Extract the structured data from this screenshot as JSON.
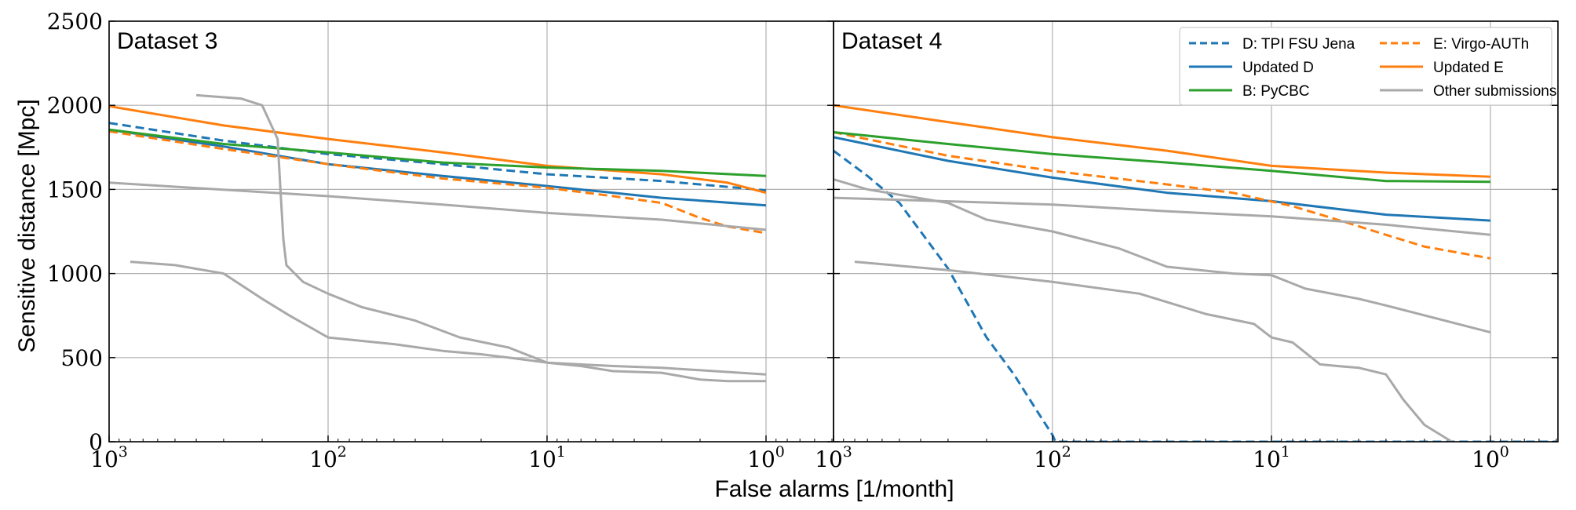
{
  "figure": {
    "ylabel": "Sensitive distance [Mpc]",
    "xlabel": "False alarms [1/month]"
  },
  "chart_data": [
    {
      "type": "line",
      "title": "Dataset 3",
      "x_axis": {
        "scale": "log",
        "reversed": true,
        "range": [
          1000,
          0.5
        ],
        "ticks": [
          {
            "value": 1000,
            "base": "10",
            "exp": "3"
          },
          {
            "value": 100,
            "base": "10",
            "exp": "2"
          },
          {
            "value": 10,
            "base": "10",
            "exp": "1"
          },
          {
            "value": 1,
            "base": "10",
            "exp": "0"
          }
        ]
      },
      "y_axis": {
        "range": [
          0,
          2500
        ],
        "ticks": [
          "0",
          "500",
          "1000",
          "1500",
          "2000",
          "2500"
        ]
      },
      "grid": true,
      "series": [
        {
          "name": "D: TPI FSU Jena",
          "color": "#1f77b4",
          "dashed": true,
          "x": [
            1000,
            300,
            100,
            30,
            10,
            3,
            1
          ],
          "y": [
            1895,
            1790,
            1710,
            1650,
            1590,
            1550,
            1495
          ]
        },
        {
          "name": "Updated D",
          "color": "#1f77b4",
          "dashed": false,
          "x": [
            1000,
            300,
            100,
            30,
            10,
            3,
            1
          ],
          "y": [
            1855,
            1755,
            1650,
            1580,
            1520,
            1450,
            1405
          ]
        },
        {
          "name": "E: Virgo-AUTh",
          "color": "#ff7f0e",
          "dashed": true,
          "x": [
            1000,
            300,
            100,
            30,
            10,
            5,
            3,
            2,
            1.5,
            1
          ],
          "y": [
            1845,
            1740,
            1650,
            1565,
            1510,
            1460,
            1420,
            1330,
            1280,
            1240
          ]
        },
        {
          "name": "Updated E",
          "color": "#ff7f0e",
          "dashed": false,
          "x": [
            1000,
            300,
            100,
            30,
            10,
            3,
            1.5,
            1
          ],
          "y": [
            1995,
            1880,
            1800,
            1720,
            1640,
            1590,
            1540,
            1480
          ]
        },
        {
          "name": "B: PyCBC",
          "color": "#2ca02c",
          "dashed": false,
          "x": [
            1000,
            300,
            100,
            30,
            10,
            3,
            1
          ],
          "y": [
            1855,
            1770,
            1720,
            1660,
            1630,
            1610,
            1580
          ]
        },
        {
          "name": "Other submissions",
          "color": "#a9a9a9",
          "dashed": false,
          "x": [
            1000,
            100,
            30,
            10,
            3,
            1
          ],
          "y": [
            1540,
            1460,
            1410,
            1360,
            1320,
            1260
          ]
        },
        {
          "name": "Other submissions",
          "color": "#a9a9a9",
          "dashed": false,
          "x": [
            400,
            250,
            200,
            170,
            165,
            160,
            155,
            130,
            100,
            70,
            40,
            25,
            15,
            10,
            7,
            5,
            3,
            2,
            1.5,
            1
          ],
          "y": [
            2060,
            2040,
            2000,
            1800,
            1500,
            1200,
            1050,
            950,
            880,
            800,
            720,
            620,
            560,
            470,
            450,
            420,
            410,
            370,
            360,
            360
          ]
        },
        {
          "name": "Other submissions",
          "color": "#a9a9a9",
          "dashed": false,
          "x": [
            800,
            500,
            300,
            200,
            150,
            100,
            50,
            30,
            20,
            15,
            10,
            5,
            3,
            1
          ],
          "y": [
            1070,
            1050,
            1000,
            850,
            750,
            620,
            580,
            540,
            520,
            500,
            470,
            450,
            440,
            400
          ]
        }
      ]
    },
    {
      "type": "line",
      "title": "Dataset 4",
      "x_axis": {
        "scale": "log",
        "reversed": true,
        "range": [
          1000,
          0.5
        ],
        "ticks": [
          {
            "value": 1000,
            "base": "10",
            "exp": "3"
          },
          {
            "value": 100,
            "base": "10",
            "exp": "2"
          },
          {
            "value": 10,
            "base": "10",
            "exp": "1"
          },
          {
            "value": 1,
            "base": "10",
            "exp": "0"
          }
        ]
      },
      "y_axis": {
        "range": [
          0,
          2500
        ]
      },
      "grid": true,
      "series": [
        {
          "name": "D: TPI FSU Jena",
          "color": "#1f77b4",
          "dashed": true,
          "x": [
            1000,
            700,
            500,
            300,
            200,
            150,
            120,
            100,
            97,
            95,
            0.5
          ],
          "y": [
            1730,
            1580,
            1420,
            1030,
            620,
            400,
            200,
            40,
            0,
            0,
            0
          ]
        },
        {
          "name": "Updated D",
          "color": "#1f77b4",
          "dashed": false,
          "x": [
            1000,
            300,
            100,
            30,
            10,
            3,
            1
          ],
          "y": [
            1810,
            1670,
            1570,
            1480,
            1430,
            1350,
            1315
          ]
        },
        {
          "name": "E: Virgo-AUTh",
          "color": "#ff7f0e",
          "dashed": true,
          "x": [
            1000,
            300,
            100,
            30,
            15,
            8,
            5,
            3,
            2,
            1
          ],
          "y": [
            1840,
            1700,
            1610,
            1530,
            1480,
            1400,
            1320,
            1230,
            1160,
            1090
          ]
        },
        {
          "name": "Updated E",
          "color": "#ff7f0e",
          "dashed": false,
          "x": [
            1000,
            300,
            100,
            30,
            10,
            3,
            1
          ],
          "y": [
            2000,
            1900,
            1810,
            1730,
            1640,
            1600,
            1575
          ]
        },
        {
          "name": "B: PyCBC",
          "color": "#2ca02c",
          "dashed": false,
          "x": [
            1000,
            300,
            100,
            30,
            10,
            3,
            1
          ],
          "y": [
            1840,
            1770,
            1710,
            1660,
            1610,
            1550,
            1545
          ]
        },
        {
          "name": "Other submissions",
          "color": "#a9a9a9",
          "dashed": false,
          "x": [
            1000,
            100,
            30,
            10,
            3,
            1
          ],
          "y": [
            1450,
            1410,
            1370,
            1340,
            1290,
            1230
          ]
        },
        {
          "name": "Other submissions",
          "color": "#a9a9a9",
          "dashed": false,
          "x": [
            1000,
            700,
            300,
            200,
            100,
            50,
            30,
            15,
            10,
            7,
            4,
            3,
            1
          ],
          "y": [
            1560,
            1500,
            1420,
            1320,
            1250,
            1150,
            1040,
            1000,
            990,
            910,
            850,
            810,
            650
          ]
        },
        {
          "name": "Other submissions",
          "color": "#a9a9a9",
          "dashed": false,
          "x": [
            800,
            300,
            100,
            40,
            20,
            12,
            10,
            8,
            6,
            5,
            4,
            3,
            2.5,
            2,
            1.5
          ],
          "y": [
            1070,
            1020,
            950,
            880,
            760,
            700,
            620,
            590,
            460,
            450,
            440,
            400,
            250,
            100,
            0
          ]
        }
      ]
    }
  ],
  "legend": {
    "placement": "top-right of Dataset 4 panel",
    "entries": [
      {
        "label": "D: TPI FSU Jena",
        "color": "#1f77b4",
        "dashed": true
      },
      {
        "label": "E: Virgo-AUTh",
        "color": "#ff7f0e",
        "dashed": true
      },
      {
        "label": "Updated D",
        "color": "#1f77b4",
        "dashed": false
      },
      {
        "label": "Updated E",
        "color": "#ff7f0e",
        "dashed": false
      },
      {
        "label": "B: PyCBC",
        "color": "#2ca02c",
        "dashed": false
      },
      {
        "label": "Other submissions",
        "color": "#a9a9a9",
        "dashed": false
      }
    ]
  }
}
